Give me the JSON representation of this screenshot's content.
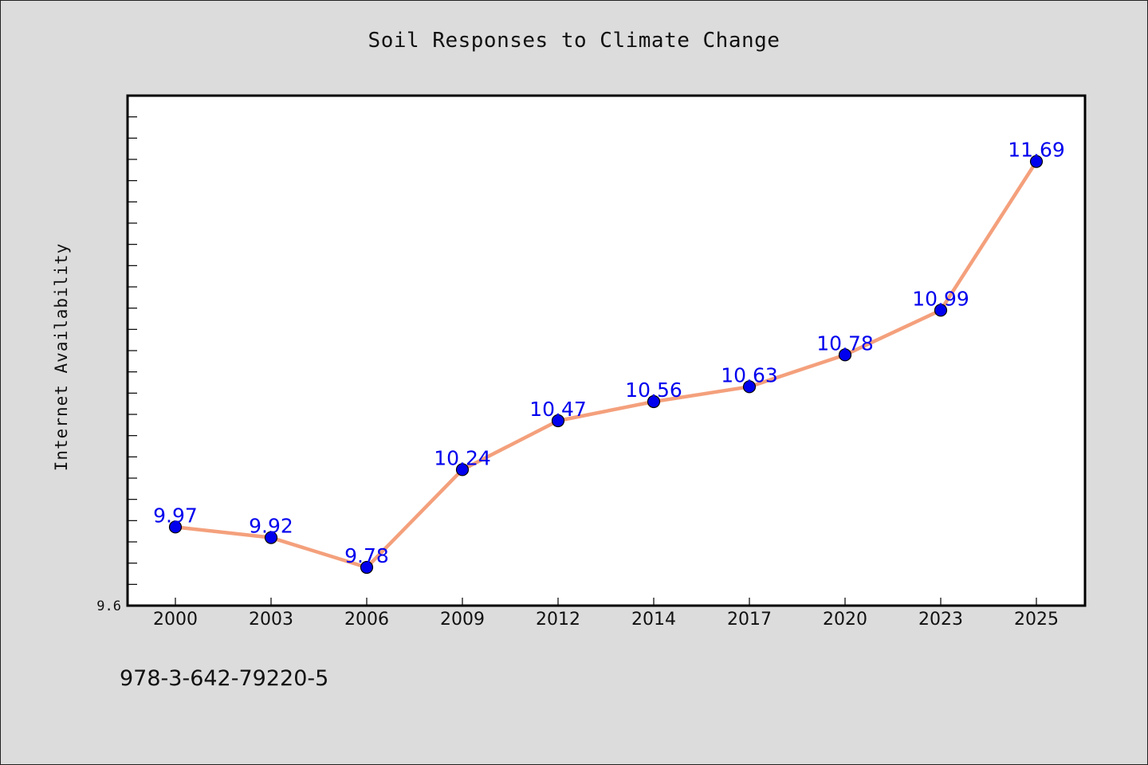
{
  "chart_data": {
    "type": "line",
    "title": "Soil Responses to Climate Change",
    "xlabel": "",
    "ylabel": "Internet Availability",
    "categories": [
      "2000",
      "2003",
      "2006",
      "2009",
      "2012",
      "2014",
      "2017",
      "2020",
      "2023",
      "2025"
    ],
    "series": [
      {
        "values": [
          9.97,
          9.92,
          9.78,
          10.24,
          10.47,
          10.56,
          10.63,
          10.78,
          10.99,
          11.69
        ]
      }
    ],
    "ylim": [
      9.6,
      12.0
    ],
    "yticks_labeled": [
      "9.6"
    ],
    "grid": false,
    "legend": "none",
    "colors": {
      "line": "#f4a07c",
      "marker": "#0000ee",
      "marker_edge": "#000000",
      "data_label": "#0000ee",
      "background": "#dcdcdc",
      "plot_background": "#ffffff"
    }
  },
  "footnote": "978-3-642-79220-5"
}
